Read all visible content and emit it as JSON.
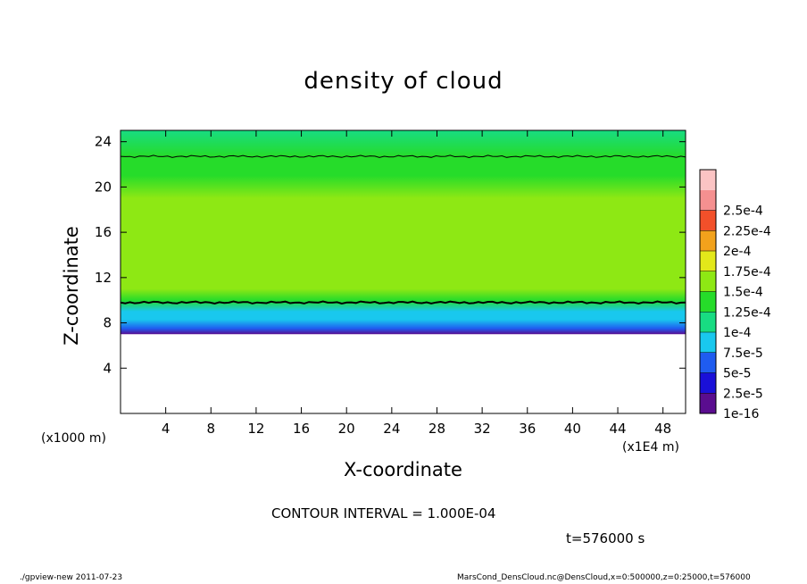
{
  "chart_data": {
    "type": "heatmap",
    "title": "density of cloud",
    "xlabel": "X-coordinate",
    "ylabel": "Z-coordinate",
    "x_unit_label": "(x1000 m)",
    "x_unit_label_secondary": "(x1E4 m)",
    "xlim": [
      0,
      50
    ],
    "ylim": [
      0,
      25
    ],
    "x_ticks": [
      4,
      8,
      12,
      16,
      20,
      24,
      28,
      32,
      36,
      40,
      44,
      48
    ],
    "y_ticks": [
      4,
      8,
      12,
      16,
      20,
      24
    ],
    "colorbar": {
      "labels": [
        "1e-16",
        "2.5e-5",
        "5e-5",
        "7.5e-5",
        "1e-4",
        "1.25e-4",
        "1.5e-4",
        "1.75e-4",
        "2e-4",
        "2.25e-4",
        "2.5e-4"
      ],
      "colors": [
        "#5a0d8f",
        "#1a10d8",
        "#1f5cf0",
        "#19c8ee",
        "#18dc82",
        "#26dc2a",
        "#8ee814",
        "#e3e81a",
        "#f2a21c",
        "#f2502a",
        "#f59090",
        "#fbc4c4"
      ]
    },
    "profile": [
      {
        "z": 7.0,
        "value": 1e-16
      },
      {
        "z": 7.5,
        "value": 2.5e-05
      },
      {
        "z": 8.3,
        "value": 5e-05
      },
      {
        "z": 9.0,
        "value": 7.5e-05
      },
      {
        "z": 10.0,
        "value": 0.0001
      },
      {
        "z": 11.0,
        "value": 0.000125
      },
      {
        "z": 13.0,
        "value": 0.00014
      },
      {
        "z": 16.0,
        "value": 0.000145
      },
      {
        "z": 19.0,
        "value": 0.00013
      },
      {
        "z": 21.0,
        "value": 0.000115
      },
      {
        "z": 22.7,
        "value": 0.0001
      },
      {
        "z": 25.0,
        "value": 8.5e-05
      }
    ],
    "contour_lines": [
      {
        "level": 0.0001,
        "z": 9.8
      },
      {
        "level": 0.0001,
        "z": 22.7
      }
    ],
    "contour_interval": "CONTOUR INTERVAL = 1.000E-04",
    "time_label": "t=576000 s"
  },
  "footer": {
    "left": "./gpview-new   2011-07-23",
    "right": "MarsCond_DensCloud.nc@DensCloud,x=0:500000,z=0:25000,t=576000"
  }
}
